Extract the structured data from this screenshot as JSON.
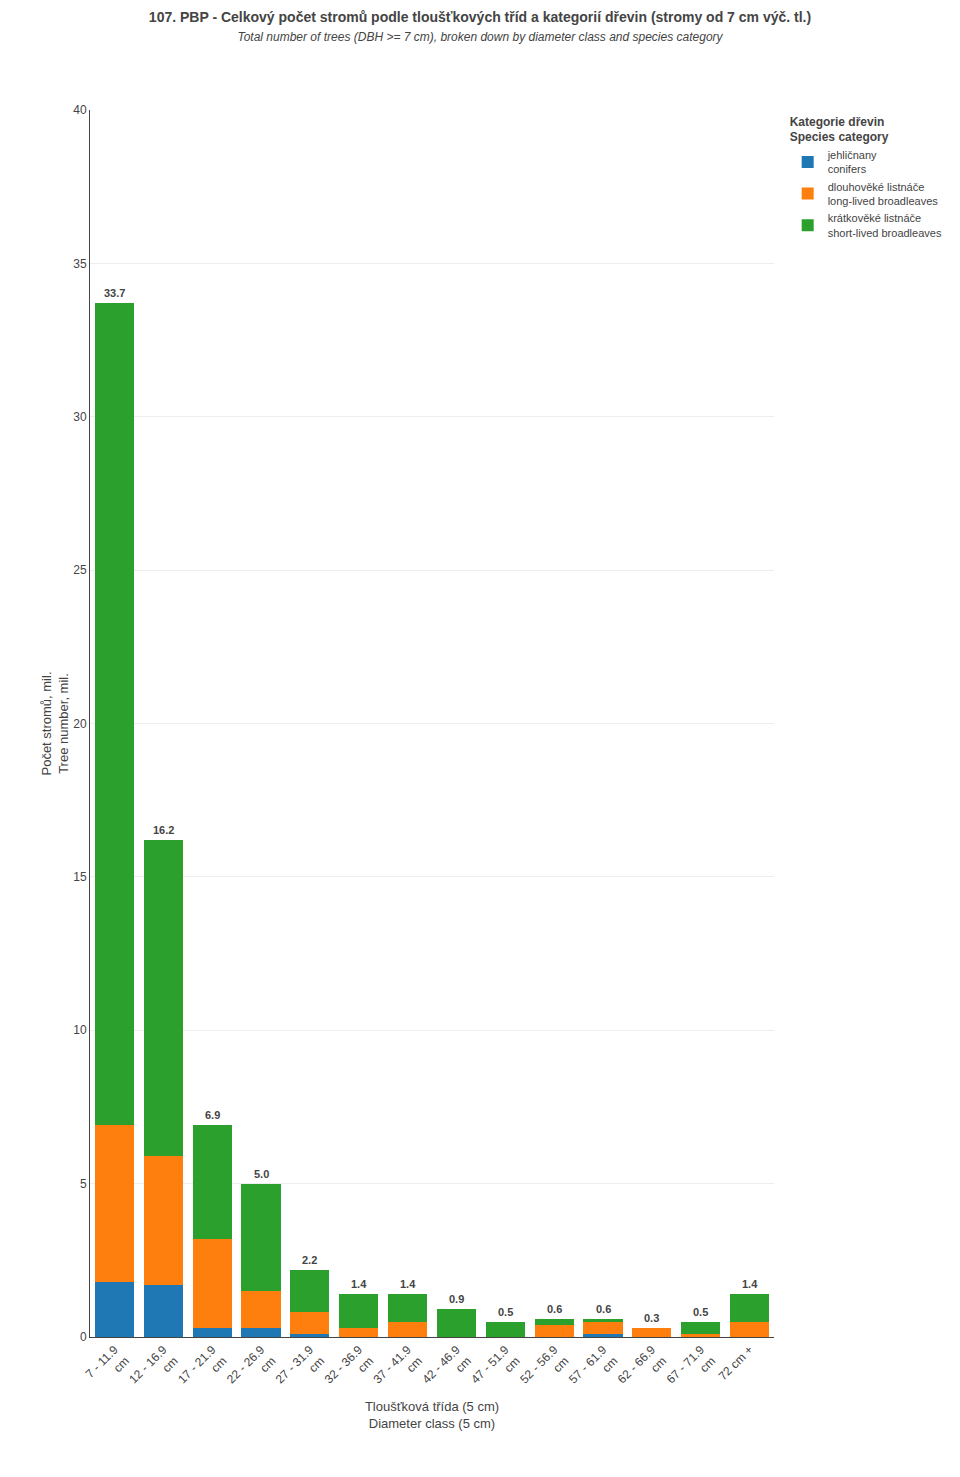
{
  "chart_data": {
    "type": "bar",
    "title": "107. PBP - Celkový počet stromů podle tloušťkových tříd a kategorií dřevin (stromy od 7 cm výč. tl.)",
    "subtitle": "Total number of trees (DBH >= 7 cm), broken down by diameter class and species category",
    "x_label": "Tloušťková třída (5 cm)\nDiameter class (5 cm)",
    "y_label": "Počet stromů, mil.\nTree number, mil.",
    "categories": [
      "7 - 11.9\ncm",
      "12 - 16.9\ncm",
      "17 - 21.9\ncm",
      "22 - 26.9\ncm",
      "27 - 31.9\ncm",
      "32 - 36.9\ncm",
      "37 - 41.9\ncm",
      "42 - 46.9\ncm",
      "47 - 51.9\ncm",
      "52 - 56.9\ncm",
      "57 - 61.9\ncm",
      "62 - 66.9\ncm",
      "67 - 71.9\ncm",
      "72 cm +"
    ],
    "series": [
      {
        "name": "jehličnany\nconifers",
        "values": [
          1.8,
          1.7,
          0.3,
          0.3,
          0.1,
          0.0,
          0.0,
          0.0,
          0.0,
          0.0,
          0.1,
          0.0,
          0.0,
          0.0
        ]
      },
      {
        "name": "dlouhověké listnáče\nlong-lived broadleaves",
        "values": [
          5.1,
          4.2,
          2.9,
          1.2,
          0.7,
          0.3,
          0.5,
          0.0,
          0.0,
          0.4,
          0.4,
          0.3,
          0.1,
          0.5
        ]
      },
      {
        "name": "krátkověké listnáče\nshort-lived broadleaves",
        "values": [
          26.8,
          10.3,
          3.7,
          3.5,
          1.4,
          1.1,
          0.9,
          0.9,
          0.5,
          0.2,
          0.1,
          0.0,
          0.4,
          0.9
        ]
      }
    ],
    "stacked": true,
    "ylim": [
      0,
      40
    ],
    "yticks": [
      0,
      5,
      10,
      15,
      20,
      25,
      30,
      35,
      40
    ],
    "grid": true,
    "legend": "right",
    "legend_title": "Kategorie dřevin\nSpecies category",
    "annotations": [
      {
        "category": "7 - 11.9\ncm",
        "y": 33.7,
        "text": "33.7"
      },
      {
        "category": "12 - 16.9\ncm",
        "y": 16.2,
        "text": "16.2"
      },
      {
        "category": "17 - 21.9\ncm",
        "y": 6.9,
        "text": "6.9"
      },
      {
        "category": "22 - 26.9\ncm",
        "y": 5.0,
        "text": "5.0"
      },
      {
        "category": "27 - 31.9\ncm",
        "y": 2.2,
        "text": "2.2"
      },
      {
        "category": "32 - 36.9\ncm",
        "y": 1.4,
        "text": "1.4"
      },
      {
        "category": "37 - 41.9\ncm",
        "y": 1.4,
        "text": "1.4"
      },
      {
        "category": "42 - 46.9\ncm",
        "y": 0.9,
        "text": "0.9"
      },
      {
        "category": "47 - 51.9\ncm",
        "y": 0.5,
        "text": "0.5"
      },
      {
        "category": "52 - 56.9\ncm",
        "y": 0.6,
        "text": "0.6"
      },
      {
        "category": "57 - 61.9\ncm",
        "y": 0.6,
        "text": "0.6"
      },
      {
        "category": "62 - 66.9\ncm",
        "y": 0.3,
        "text": "0.3"
      },
      {
        "category": "67 - 71.9\ncm",
        "y": 0.5,
        "text": "0.5"
      },
      {
        "category": "72 cm +",
        "y": 1.4,
        "text": "1.4"
      }
    ]
  }
}
